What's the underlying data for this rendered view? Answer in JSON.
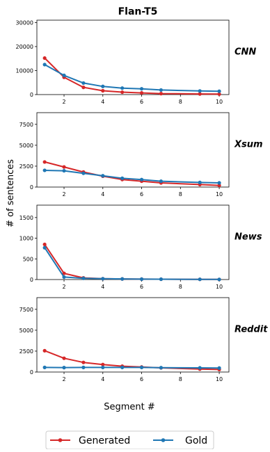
{
  "chart_data": {
    "type": "line",
    "title": "Flan-T5",
    "xlabel": "Segment #",
    "ylabel": "# of sentences",
    "x": [
      1,
      2,
      3,
      4,
      5,
      6,
      7,
      9,
      10
    ],
    "xlim": [
      0.6,
      10.5
    ],
    "xticks": [
      2,
      4,
      6,
      8,
      10
    ],
    "legend": {
      "placement": "bottom-center",
      "entries": [
        "Generated",
        "Gold"
      ]
    },
    "colors": {
      "Generated": "#d62728",
      "Gold": "#1f77b4"
    },
    "panels": [
      {
        "label": "CNN",
        "ylim": [
          0,
          31000
        ],
        "yticks": [
          0,
          10000,
          20000,
          30000
        ],
        "series": [
          {
            "name": "Generated",
            "values": [
              15200,
              7200,
              3000,
              1600,
              1000,
              700,
              400,
              250,
              200
            ]
          },
          {
            "name": "Gold",
            "values": [
              12500,
              8000,
              4800,
              3400,
              2700,
              2400,
              1900,
              1500,
              1400
            ]
          }
        ]
      },
      {
        "label": "Xsum",
        "ylim": [
          0,
          8900
        ],
        "yticks": [
          0,
          2500,
          5000,
          7500
        ],
        "series": [
          {
            "name": "Generated",
            "values": [
              3000,
              2400,
              1800,
              1300,
              900,
              700,
              500,
              300,
              200
            ]
          },
          {
            "name": "Gold",
            "values": [
              2000,
              1950,
              1650,
              1350,
              1050,
              900,
              700,
              550,
              500
            ]
          }
        ]
      },
      {
        "label": "News",
        "ylim": [
          0,
          1800
        ],
        "yticks": [
          0,
          500,
          1000,
          1500
        ],
        "series": [
          {
            "name": "Generated",
            "values": [
              850,
              150,
              40,
              20,
              15,
              10,
              8,
              5,
              3
            ]
          },
          {
            "name": "Gold",
            "values": [
              770,
              60,
              30,
              20,
              15,
              10,
              8,
              5,
              3
            ]
          }
        ]
      },
      {
        "label": "Reddit",
        "ylim": [
          0,
          8900
        ],
        "yticks": [
          0,
          2500,
          5000,
          7500
        ],
        "series": [
          {
            "name": "Generated",
            "values": [
              2550,
              1650,
              1150,
              900,
              700,
              600,
              500,
              350,
              300
            ]
          },
          {
            "name": "Gold",
            "values": [
              550,
              530,
              550,
              550,
              550,
              550,
              520,
              500,
              480
            ]
          }
        ]
      }
    ]
  }
}
